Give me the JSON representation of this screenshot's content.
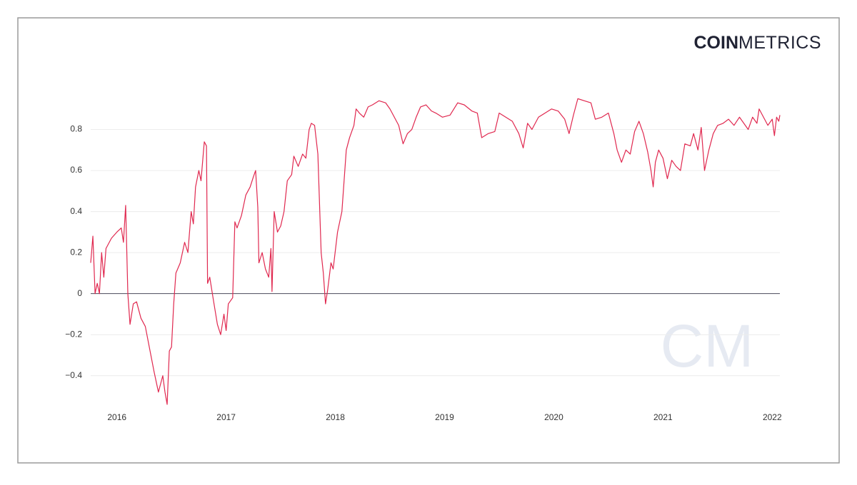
{
  "chart_data": {
    "type": "line",
    "logo": {
      "bold": "COIN",
      "light": "METRICS"
    },
    "watermark": "CM",
    "xlim": [
      2015.76,
      2022.07
    ],
    "xticks": [
      2016,
      2017,
      2018,
      2019,
      2020,
      2021,
      2022
    ],
    "ylim": [
      -0.54,
      1.0
    ],
    "yticks": [
      {
        "value": -0.4,
        "label": "−0.4"
      },
      {
        "value": -0.2,
        "label": "−0.2"
      },
      0,
      0.2,
      0.4,
      0.6,
      0.8
    ],
    "grid": true,
    "series": [
      {
        "color": "#e0284f",
        "x": [
          2015.76,
          2015.78,
          2015.8,
          2015.82,
          2015.84,
          2015.86,
          2015.88,
          2015.9,
          2015.95,
          2016.0,
          2016.04,
          2016.06,
          2016.08,
          2016.1,
          2016.12,
          2016.15,
          2016.18,
          2016.22,
          2016.26,
          2016.3,
          2016.34,
          2016.38,
          2016.42,
          2016.44,
          2016.46,
          2016.48,
          2016.5,
          2016.52,
          2016.54,
          2016.58,
          2016.62,
          2016.65,
          2016.68,
          2016.7,
          2016.72,
          2016.75,
          2016.77,
          2016.8,
          2016.82,
          2016.83,
          2016.85,
          2016.88,
          2016.92,
          2016.95,
          2016.98,
          2017.0,
          2017.02,
          2017.06,
          2017.08,
          2017.1,
          2017.14,
          2017.18,
          2017.22,
          2017.25,
          2017.27,
          2017.29,
          2017.3,
          2017.33,
          2017.36,
          2017.39,
          2017.41,
          2017.42,
          2017.44,
          2017.47,
          2017.5,
          2017.53,
          2017.56,
          2017.6,
          2017.62,
          2017.66,
          2017.7,
          2017.73,
          2017.76,
          2017.78,
          2017.81,
          2017.84,
          2017.87,
          2017.89,
          2017.91,
          2017.93,
          2017.96,
          2017.98,
          2018.02,
          2018.06,
          2018.1,
          2018.13,
          2018.17,
          2018.19,
          2018.22,
          2018.26,
          2018.3,
          2018.34,
          2018.4,
          2018.46,
          2018.5,
          2018.54,
          2018.58,
          2018.62,
          2018.66,
          2018.7,
          2018.74,
          2018.78,
          2018.83,
          2018.88,
          2018.92,
          2018.98,
          2019.05,
          2019.12,
          2019.18,
          2019.25,
          2019.3,
          2019.34,
          2019.4,
          2019.46,
          2019.5,
          2019.56,
          2019.62,
          2019.68,
          2019.72,
          2019.76,
          2019.8,
          2019.86,
          2019.92,
          2019.98,
          2020.04,
          2020.1,
          2020.14,
          2020.18,
          2020.22,
          2020.28,
          2020.34,
          2020.38,
          2020.44,
          2020.5,
          2020.55,
          2020.58,
          2020.62,
          2020.66,
          2020.7,
          2020.74,
          2020.78,
          2020.82,
          2020.86,
          2020.89,
          2020.91,
          2020.93,
          2020.96,
          2021.0,
          2021.04,
          2021.08,
          2021.12,
          2021.16,
          2021.2,
          2021.25,
          2021.28,
          2021.32,
          2021.35,
          2021.38,
          2021.42,
          2021.46,
          2021.5,
          2021.55,
          2021.6,
          2021.65,
          2021.7,
          2021.74,
          2021.78,
          2021.82,
          2021.86,
          2021.88,
          2021.92,
          2021.96,
          2022.0,
          2022.02,
          2022.04,
          2022.06,
          2022.07
        ],
        "values": [
          0.15,
          0.28,
          0.0,
          0.05,
          0.0,
          0.2,
          0.08,
          0.22,
          0.27,
          0.3,
          0.32,
          0.25,
          0.43,
          0.0,
          -0.15,
          -0.05,
          -0.04,
          -0.12,
          -0.16,
          -0.27,
          -0.38,
          -0.48,
          -0.4,
          -0.48,
          -0.54,
          -0.28,
          -0.26,
          -0.05,
          0.1,
          0.15,
          0.25,
          0.2,
          0.4,
          0.34,
          0.52,
          0.6,
          0.55,
          0.74,
          0.72,
          0.05,
          0.08,
          -0.02,
          -0.15,
          -0.2,
          -0.1,
          -0.18,
          -0.05,
          -0.02,
          0.35,
          0.32,
          0.38,
          0.48,
          0.52,
          0.57,
          0.6,
          0.42,
          0.15,
          0.2,
          0.12,
          0.08,
          0.22,
          0.01,
          0.4,
          0.3,
          0.33,
          0.4,
          0.55,
          0.58,
          0.67,
          0.62,
          0.68,
          0.66,
          0.8,
          0.83,
          0.82,
          0.68,
          0.2,
          0.1,
          -0.05,
          0.02,
          0.15,
          0.12,
          0.3,
          0.4,
          0.7,
          0.76,
          0.82,
          0.9,
          0.88,
          0.86,
          0.91,
          0.92,
          0.94,
          0.93,
          0.9,
          0.86,
          0.82,
          0.73,
          0.78,
          0.8,
          0.86,
          0.91,
          0.92,
          0.89,
          0.88,
          0.86,
          0.87,
          0.93,
          0.92,
          0.89,
          0.88,
          0.76,
          0.78,
          0.79,
          0.88,
          0.86,
          0.84,
          0.78,
          0.71,
          0.83,
          0.8,
          0.86,
          0.88,
          0.9,
          0.89,
          0.85,
          0.78,
          0.87,
          0.95,
          0.94,
          0.93,
          0.85,
          0.86,
          0.88,
          0.78,
          0.7,
          0.64,
          0.7,
          0.68,
          0.79,
          0.84,
          0.78,
          0.69,
          0.6,
          0.52,
          0.64,
          0.7,
          0.66,
          0.56,
          0.65,
          0.62,
          0.6,
          0.73,
          0.72,
          0.78,
          0.7,
          0.81,
          0.6,
          0.7,
          0.78,
          0.82,
          0.83,
          0.85,
          0.82,
          0.86,
          0.83,
          0.8,
          0.86,
          0.83,
          0.9,
          0.86,
          0.82,
          0.85,
          0.77,
          0.86,
          0.84,
          0.87
        ]
      }
    ]
  }
}
